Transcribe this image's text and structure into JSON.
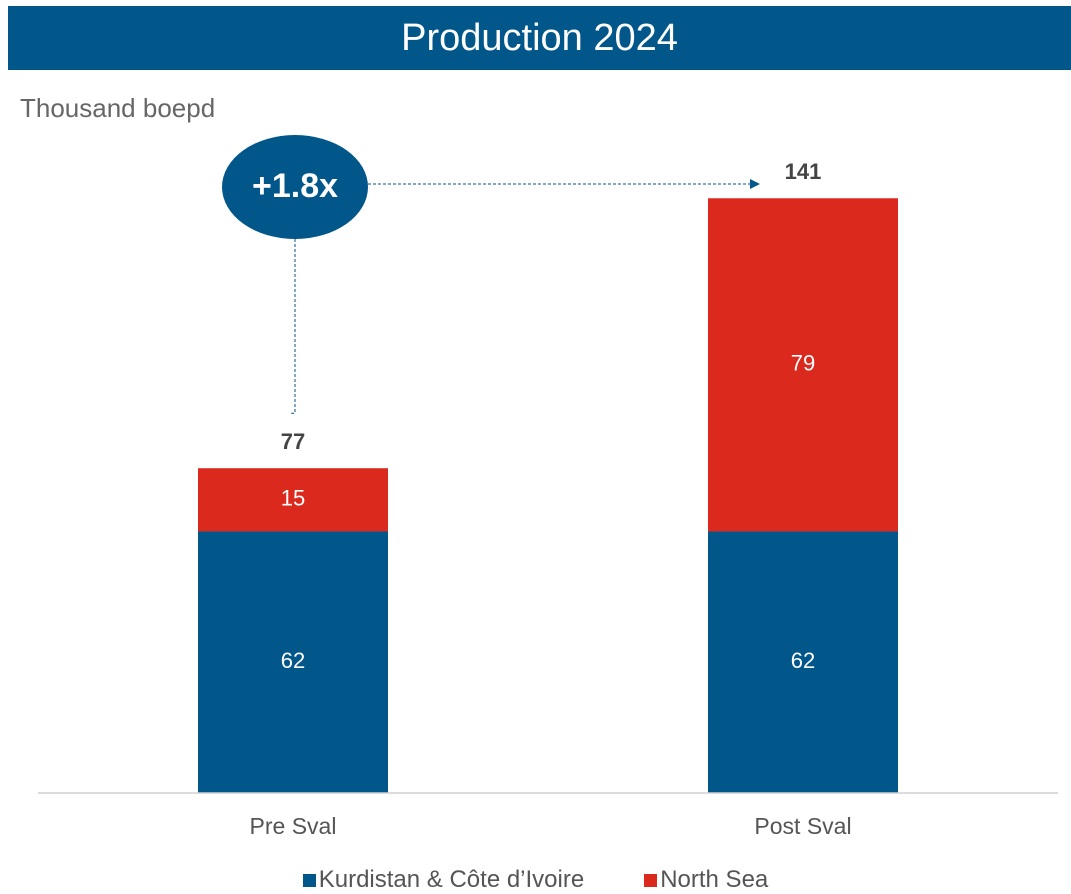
{
  "page": {
    "title": "Production 2024",
    "unit": "Thousand boepd"
  },
  "callout": {
    "label": "+1.8x"
  },
  "colors": {
    "title_bg": "#01568a",
    "kurdistan": "#01568a",
    "north_sea": "#db291e",
    "axis": "#d0d0d0",
    "text": "#555555",
    "total_text": "#444444"
  },
  "chart_data": {
    "type": "bar",
    "stacked": true,
    "categories": [
      "Pre Sval",
      "Post Sval"
    ],
    "series": [
      {
        "name": "Kurdistan & Côte d’Ivoire",
        "values": [
          62,
          62
        ],
        "color": "#01568a"
      },
      {
        "name": "North Sea",
        "values": [
          15,
          79
        ],
        "color": "#db291e"
      }
    ],
    "totals": [
      "77",
      "141"
    ],
    "ylabel": "Thousand boepd",
    "ylim": [
      0,
      141
    ],
    "grid": false,
    "legend_position": "bottom"
  }
}
